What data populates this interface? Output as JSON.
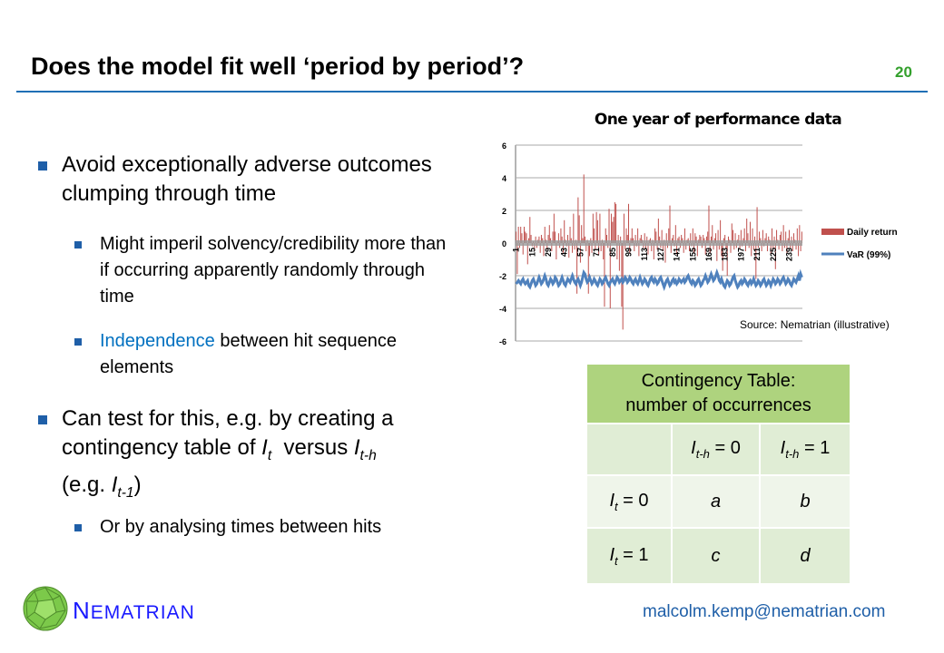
{
  "slide": {
    "title": "Does the model fit well ‘period by period’?",
    "page_number": "20",
    "bullets": {
      "b1": "Avoid exceptionally adverse outcomes clumping through time",
      "b1a": "Might imperil solvency/credibility more than if occurring apparently randomly through time",
      "b1b_link": "Independence",
      "b1b_rest": " between hit sequence elements",
      "b2_pre": "Can test for this, e.g. by creating a contingency table of ",
      "b2_I": "I",
      "b2_t": "t",
      "b2_mid": "  versus ",
      "b2_th": "t-h",
      "b2_eg": "(e.g. ",
      "b2_t1": "t-1",
      "b2_close": ")",
      "b2a": "Or by analysing times between hits"
    },
    "footer": {
      "brand_first": "N",
      "brand_rest": "EMATRIAN",
      "email": "malcolm.kemp@nematrian.com"
    }
  },
  "table": {
    "header_line1": "Contingency Table:",
    "header_line2": "number of occurrences",
    "col1": {
      "I": "I",
      "sub": "t-h",
      "rest": " = 0"
    },
    "col2": {
      "I": "I",
      "sub": "t-h",
      "rest": " = 1"
    },
    "row1": {
      "I": "I",
      "sub": "t",
      "rest": " = 0",
      "a": "a",
      "b": "b"
    },
    "row2": {
      "I": "I",
      "sub": "t",
      "rest": " = 1",
      "c": "c",
      "d": "d"
    }
  },
  "chart_data": {
    "type": "bar+line",
    "title": "One year of performance data",
    "source": "Source: Nematrian (illustrative)",
    "ylim": [
      -6,
      6
    ],
    "yticks": [
      "6",
      "4",
      "2",
      "0",
      "-2",
      "-4",
      "-6"
    ],
    "ytick_values": [
      6,
      4,
      2,
      0,
      -2,
      -4,
      -6
    ],
    "xticks": [
      "1",
      "15",
      "29",
      "43",
      "57",
      "71",
      "85",
      "99",
      "113",
      "127",
      "141",
      "155",
      "169",
      "183",
      "197",
      "211",
      "225",
      "239"
    ],
    "colors": {
      "daily_return": "#c0504d",
      "var": "#4f81bd"
    },
    "series": [
      {
        "name": "Daily return",
        "type": "bar",
        "values": [
          0.7,
          -1.9,
          1.0,
          -0.3,
          1.0,
          0.6,
          -0.7,
          1.0,
          0.7,
          0.6,
          -1.3,
          0.3,
          1.6,
          0.5,
          -0.2,
          0.1,
          -0.5,
          0.4,
          -0.3,
          0.2,
          0.4,
          -0.6,
          0.5,
          0.3,
          -0.8,
          1.0,
          0.2,
          -0.4,
          0.5,
          1.1,
          0.3,
          -0.5,
          0.7,
          1.8,
          0.7,
          -1.0,
          0.1,
          0.6,
          -0.3,
          0.9,
          0.4,
          -0.6,
          1.4,
          0.2,
          -0.2,
          0.5,
          -0.9,
          1.0,
          0.3,
          -0.6,
          1.8,
          -0.4,
          0.2,
          -3.1,
          2.8,
          1.7,
          -1.2,
          1.1,
          0.3,
          4.2,
          0.4,
          -0.5,
          0.2,
          -3.1,
          -0.8,
          0.3,
          -0.6,
          1.8,
          0.9,
          -0.4,
          1.9,
          1.4,
          -0.7,
          1.8,
          -0.5,
          0.2,
          -1.0,
          -3.9,
          0.9,
          0.5,
          -0.3,
          2.1,
          -4.0,
          1.8,
          1.3,
          1.6,
          2.5,
          2.4,
          -1.0,
          0.5,
          -1.7,
          0.4,
          -3.9,
          -5.3,
          1.8,
          -0.4,
          0.9,
          0.5,
          2.4,
          -0.6,
          0.3,
          0.9,
          0.3,
          -0.5,
          0.5,
          -0.2,
          0.9,
          -0.8,
          0.3,
          0.5,
          0.2,
          -0.3,
          0.6,
          -0.4,
          0.4,
          -0.7,
          0.2,
          0.3,
          -0.5,
          0.2,
          -1.0,
          0.9,
          0.7,
          -0.4,
          1.5,
          0.4,
          -0.3,
          0.8,
          -0.5,
          0.2,
          -1.2,
          0.6,
          -0.3,
          0.9,
          2.3,
          -0.6,
          0.3,
          0.5,
          -0.2,
          1.1,
          -0.7,
          0.3,
          0.4,
          -0.3,
          0.5,
          0.3,
          -0.6,
          0.9,
          -0.4,
          0.2,
          0.3,
          -0.5,
          0.6,
          -0.2,
          0.9,
          -0.6,
          0.6,
          0.4,
          -0.8,
          0.2,
          0.5,
          0.4,
          -0.3,
          0.5,
          0.3,
          -0.7,
          0.4,
          0.7,
          2.3,
          -0.6,
          0.4,
          1.1,
          -0.4,
          0.3,
          0.6,
          -1.1,
          0.8,
          -0.4,
          1.4,
          -0.8,
          -1.7,
          0.3,
          0.5,
          -0.3,
          -2.0,
          0.4,
          0.2,
          -0.6,
          1.2,
          0.8,
          -0.4,
          0.6,
          -0.3,
          0.2,
          0.5,
          -0.4,
          0.8,
          -0.2,
          0.3,
          0.9,
          -0.5,
          1.5,
          0.6,
          -0.3,
          1.3,
          -0.8,
          0.9,
          -0.4,
          0.4,
          -2.2,
          2.2,
          -0.3,
          0.7,
          0.3,
          -0.5,
          0.8,
          -0.2,
          0.3,
          0.6,
          -0.5,
          0.4,
          0.2,
          -0.7,
          0.9,
          -0.4,
          0.4,
          -1.6,
          0.8,
          0.2,
          -0.4,
          0.5,
          0.7,
          -0.5,
          1.1,
          -0.3,
          0.7,
          -0.6,
          0.3,
          0.8,
          -0.3,
          0.4,
          -0.5,
          0.6,
          0.2,
          -0.4,
          0.9,
          -0.8,
          1.1,
          -0.5,
          0.7
        ]
      },
      {
        "name": "VaR (99%)",
        "type": "line",
        "values": [
          -2.5,
          -2.4,
          -2.3,
          -2.4,
          -2.5,
          -2.3,
          -2.2,
          -2.4,
          -2.5,
          -2.4,
          -2.3,
          -2.6,
          -2.7,
          -2.5,
          -2.3,
          -2.2,
          -2.4,
          -2.6,
          -2.5,
          -2.3,
          -2.1,
          -2.3,
          -2.5,
          -2.4,
          -2.2,
          -2.0,
          -2.2,
          -2.5,
          -2.6,
          -2.4,
          -2.2,
          -2.3,
          -2.5,
          -2.4,
          -2.1,
          -2.2,
          -2.4,
          -2.6,
          -2.5,
          -2.3,
          -2.1,
          -2.3,
          -2.5,
          -2.6,
          -2.4,
          -2.2,
          -2.3,
          -2.4,
          -2.2,
          -2.0,
          -2.2,
          -2.4,
          -2.5,
          -2.3,
          -2.2,
          -2.4,
          -2.6,
          -2.4,
          -2.1,
          -1.8,
          -1.9,
          -2.2,
          -2.4,
          -2.3,
          -2.1,
          -2.3,
          -2.5,
          -2.4,
          -2.2,
          -2.3,
          -2.5,
          -2.6,
          -2.4,
          -2.2,
          -2.3,
          -2.5,
          -2.4,
          -2.2,
          -2.1,
          -2.3,
          -2.5,
          -2.6,
          -2.4,
          -2.3,
          -2.2,
          -2.4,
          -2.5,
          -2.3,
          -2.1,
          -2.2,
          -2.4,
          -2.3,
          -2.2,
          -2.4,
          -2.3,
          -2.1,
          -2.2,
          -2.4,
          -2.3,
          -2.1,
          -2.2,
          -2.4,
          -2.5,
          -2.3,
          -2.2,
          -2.4,
          -2.5,
          -2.3,
          -2.1,
          -2.3,
          -2.5,
          -2.4,
          -2.2,
          -2.3,
          -2.5,
          -2.6,
          -2.4,
          -2.2,
          -2.1,
          -2.3,
          -2.4,
          -2.2,
          -2.3,
          -2.5,
          -2.4,
          -2.2,
          -2.1,
          -2.3,
          -2.5,
          -2.7,
          -2.5,
          -2.3,
          -2.2,
          -2.4,
          -2.6,
          -2.5,
          -2.3,
          -2.2,
          -2.4,
          -2.3,
          -2.5,
          -2.4,
          -2.2,
          -2.3,
          -2.4,
          -2.3,
          -2.2,
          -2.4,
          -2.3,
          -2.1,
          -2.0,
          -2.2,
          -2.4,
          -2.5,
          -2.3,
          -2.4,
          -2.6,
          -2.5,
          -2.3,
          -2.2,
          -2.4,
          -2.6,
          -2.5,
          -2.3,
          -2.2,
          -2.0,
          -2.2,
          -2.4,
          -2.3,
          -2.1,
          -1.9,
          -2.1,
          -2.3,
          -2.2,
          -2.0,
          -1.8,
          -2.0,
          -2.3,
          -2.4,
          -2.2,
          -2.4,
          -2.6,
          -2.7,
          -2.5,
          -2.3,
          -2.4,
          -2.6,
          -2.5,
          -2.3,
          -2.1,
          -2.0,
          -2.3,
          -2.5,
          -2.7,
          -2.6,
          -2.4,
          -2.3,
          -2.5,
          -2.4,
          -2.2,
          -2.3,
          -2.5,
          -2.6,
          -2.4,
          -2.3,
          -2.5,
          -2.4,
          -2.2,
          -2.4,
          -2.6,
          -2.5,
          -2.3,
          -2.4,
          -2.6,
          -2.5,
          -2.3,
          -2.2,
          -2.4,
          -2.6,
          -2.5,
          -2.3,
          -2.4,
          -2.6,
          -2.4,
          -2.2,
          -2.3,
          -2.5,
          -2.4,
          -2.2,
          -2.3,
          -2.5,
          -2.4,
          -2.2,
          -2.1,
          -2.3,
          -2.5,
          -2.4,
          -2.2,
          -2.3,
          -2.5,
          -2.6,
          -2.4,
          -2.2,
          -2.3,
          -2.4,
          -2.2,
          -2.0,
          -2.3,
          -1.9,
          -2.1
        ]
      }
    ],
    "legend": "right"
  }
}
